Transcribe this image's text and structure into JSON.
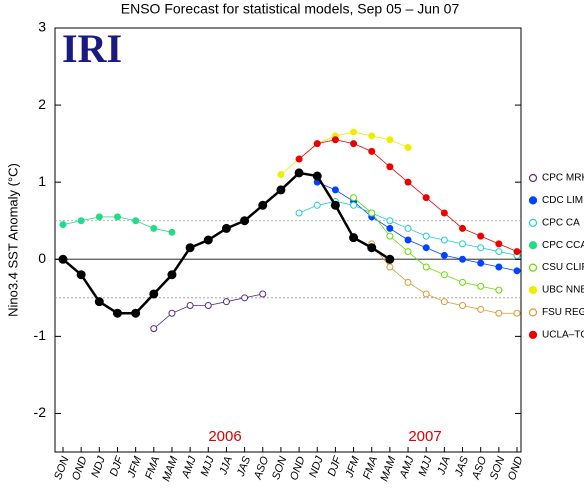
{
  "chart_data": {
    "type": "line",
    "title": "ENSO Forecast for statistical models, Sep 05 – Jun 07",
    "ylabel": "Nino3.4 SST Anomaly (°C)",
    "logo": "IRI",
    "annotations": [
      "2006",
      "2007"
    ],
    "categories": [
      "SON",
      "OND",
      "NDJ",
      "DJF",
      "JFM",
      "FMA",
      "MAM",
      "AMJ",
      "MJJ",
      "JJA",
      "JAS",
      "ASO",
      "SON",
      "OND",
      "NDJ",
      "DJF",
      "JFM",
      "FMA",
      "MAM",
      "AMJ",
      "MJJ",
      "JJA",
      "JAS",
      "ASO",
      "SON",
      "OND"
    ],
    "ylim": [
      -2.5,
      3
    ],
    "yticks": [
      -2,
      -1,
      0,
      1,
      2,
      3
    ],
    "reference_lines": [
      -0.5,
      0,
      0.5
    ],
    "observed": {
      "color": "#000000",
      "values": [
        0.0,
        -0.2,
        -0.55,
        -0.7,
        -0.7,
        -0.45,
        -0.2,
        0.15,
        0.25,
        0.4,
        0.5,
        0.7,
        0.9,
        1.12,
        1.08,
        0.7,
        0.28,
        0.15,
        0.0,
        null,
        null,
        null,
        null,
        null,
        null,
        null
      ]
    },
    "series": [
      {
        "name": "CPC MRKOV",
        "color": "#5a2a8a",
        "filled": false,
        "values": [
          null,
          null,
          null,
          null,
          null,
          -0.9,
          -0.7,
          -0.6,
          -0.6,
          -0.55,
          -0.5,
          -0.45,
          null,
          null,
          null,
          null,
          null,
          null,
          null,
          null,
          null,
          null,
          null,
          null,
          null,
          null
        ]
      },
      {
        "name": "CDC LIM",
        "color": "#0044ff",
        "filled": true,
        "values": [
          null,
          null,
          null,
          null,
          null,
          null,
          null,
          null,
          null,
          null,
          null,
          null,
          null,
          null,
          1.0,
          0.9,
          0.75,
          0.55,
          0.4,
          0.25,
          0.15,
          0.05,
          0,
          -0.05,
          -0.1,
          -0.15
        ]
      },
      {
        "name": "CPC CA",
        "color": "#22cccc",
        "filled": false,
        "values": [
          null,
          null,
          null,
          null,
          null,
          null,
          null,
          null,
          null,
          null,
          null,
          null,
          null,
          0.6,
          0.7,
          0.75,
          0.7,
          0.6,
          0.5,
          0.4,
          0.3,
          0.25,
          0.2,
          0.15,
          0.1,
          0.05
        ]
      },
      {
        "name": "CPC CCA",
        "color": "#22dd88",
        "filled": true,
        "values": [
          0.45,
          0.5,
          0.55,
          0.55,
          0.5,
          0.4,
          0.35,
          null,
          null,
          null,
          null,
          null,
          null,
          null,
          null,
          null,
          null,
          null,
          null,
          null,
          null,
          null,
          null,
          null,
          null,
          null
        ]
      },
      {
        "name": "CSU CLIPR",
        "color": "#66dd00",
        "filled": false,
        "values": [
          null,
          null,
          null,
          null,
          null,
          null,
          null,
          null,
          null,
          null,
          null,
          null,
          null,
          null,
          null,
          null,
          0.8,
          0.6,
          0.3,
          0.1,
          -0.1,
          -0.2,
          -0.3,
          -0.35,
          -0.4,
          null
        ]
      },
      {
        "name": "UBC NNET",
        "color": "#eeee00",
        "filled": true,
        "values": [
          null,
          null,
          null,
          null,
          null,
          null,
          null,
          null,
          null,
          null,
          null,
          null,
          1.1,
          1.3,
          1.5,
          1.6,
          1.65,
          1.6,
          1.55,
          1.45,
          null,
          null,
          null,
          null,
          null,
          null
        ]
      },
      {
        "name": "FSU REGR",
        "color": "#dd9933",
        "filled": false,
        "values": [
          null,
          null,
          null,
          null,
          null,
          null,
          null,
          null,
          null,
          null,
          null,
          null,
          null,
          null,
          null,
          null,
          null,
          0.2,
          -0.1,
          -0.3,
          -0.45,
          -0.55,
          -0.6,
          -0.65,
          -0.7,
          -0.7
        ]
      },
      {
        "name": "UCLA–TCD",
        "color": "#ee0000",
        "filled": true,
        "values": [
          null,
          null,
          null,
          null,
          null,
          null,
          null,
          null,
          null,
          null,
          null,
          null,
          null,
          1.3,
          1.5,
          1.55,
          1.5,
          1.4,
          1.2,
          1.0,
          0.8,
          0.6,
          0.4,
          0.3,
          0.2,
          0.1
        ]
      }
    ]
  }
}
